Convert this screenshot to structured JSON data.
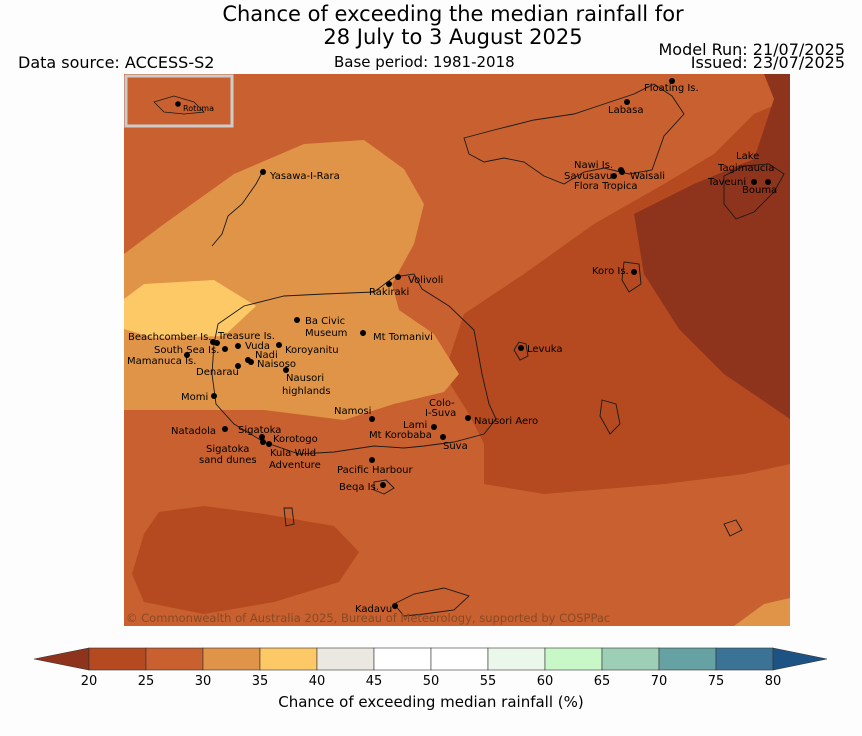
{
  "title": {
    "line1": "Chance of exceeding the median rainfall for",
    "line2": "28 July to 3 August 2025"
  },
  "data_source": "Data source: ACCESS-S2",
  "base_period": "Base period: 1981-2018",
  "model_run": "Model Run: 21/07/2025",
  "issued": "Issued: 23/07/2025",
  "copyright": "© Commonwealth of Australia 2025, Bureau of Meteorology, supported by COSPPac",
  "inset_label": "Rotuma",
  "places": [
    {
      "name": "Floating Is."
    },
    {
      "name": "Labasa"
    },
    {
      "name": "Yasawa-I-Rara"
    },
    {
      "name": "Nawi Is."
    },
    {
      "name": "Savusavu"
    },
    {
      "name": "Waisali"
    },
    {
      "name": "Flora Tropica"
    },
    {
      "name": "Lake"
    },
    {
      "name": "Tagimaucia"
    },
    {
      "name": "Taveuni"
    },
    {
      "name": "Bouma"
    },
    {
      "name": "Koro Is."
    },
    {
      "name": "Volivoli"
    },
    {
      "name": "Rakiraki"
    },
    {
      "name": "Ba Civic"
    },
    {
      "name": "Museum"
    },
    {
      "name": "Mt Tomanivi"
    },
    {
      "name": "Beachcomber Is."
    },
    {
      "name": "Treasure Is."
    },
    {
      "name": "South Sea Is."
    },
    {
      "name": "Vuda"
    },
    {
      "name": "Koroyanitu"
    },
    {
      "name": "Nadi"
    },
    {
      "name": "Mamanuca Is."
    },
    {
      "name": "Naisoso"
    },
    {
      "name": "Denarau"
    },
    {
      "name": "Nausori"
    },
    {
      "name": "highlands"
    },
    {
      "name": "Levuka"
    },
    {
      "name": "Momi"
    },
    {
      "name": "Namosi"
    },
    {
      "name": "Colo-"
    },
    {
      "name": "I-Suva"
    },
    {
      "name": "Lami"
    },
    {
      "name": "Nausori Aero"
    },
    {
      "name": "Natadola"
    },
    {
      "name": "Sigatoka"
    },
    {
      "name": "Mt Korobaba"
    },
    {
      "name": "Korotogo"
    },
    {
      "name": "Suva"
    },
    {
      "name": "Sigatoka"
    },
    {
      "name": "sand dunes"
    },
    {
      "name": "Kula Wild"
    },
    {
      "name": "Adventure"
    },
    {
      "name": "Pacific Harbour"
    },
    {
      "name": "Beqa Is."
    },
    {
      "name": "Kadavu"
    }
  ],
  "legend": {
    "title": "Chance of exceeding median rainfall (%)",
    "ticks": [
      "20",
      "25",
      "30",
      "35",
      "40",
      "45",
      "50",
      "55",
      "60",
      "65",
      "70",
      "75",
      "80"
    ],
    "colors": [
      "#b5491f",
      "#c8602f",
      "#e09448",
      "#fdc866",
      "#ebe8e2",
      "#ffffff",
      "#ffffff",
      "#ecf7ec",
      "#c9f8c8",
      "#9dcfb7",
      "#66a1a4",
      "#3b7396"
    ],
    "under_color": "#8e341d",
    "over_color": "#1d5384"
  },
  "map_colors": {
    "bin_20_25": "#8e341d",
    "bin_25_30": "#b5491f",
    "bin_30_35": "#c8602f",
    "bin_35_40": "#e09448",
    "bin_40_45": "#fdc866"
  }
}
